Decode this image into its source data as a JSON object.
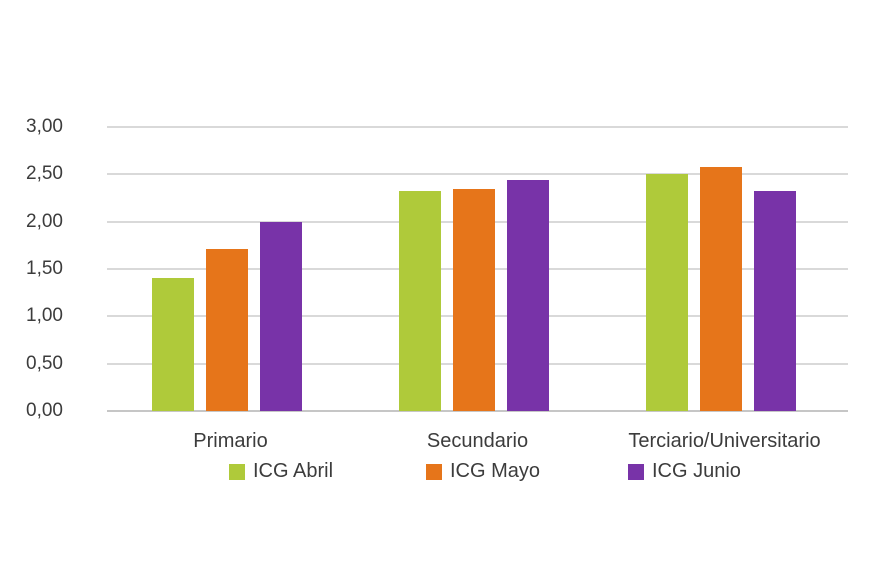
{
  "chart_data": {
    "type": "bar",
    "title": "",
    "xlabel": "",
    "ylabel": "",
    "categories": [
      "Primario",
      "Secundario",
      "Terciario/Universitario"
    ],
    "series": [
      {
        "name": "ICG Abril",
        "color": "#afca3a",
        "values": [
          1.4,
          2.32,
          2.5
        ]
      },
      {
        "name": "ICG Mayo",
        "color": "#e6751a",
        "values": [
          1.71,
          2.35,
          2.58
        ]
      },
      {
        "name": "ICG Junio",
        "color": "#7833a8",
        "values": [
          2.0,
          2.44,
          2.32
        ]
      }
    ],
    "ylim": [
      0,
      3
    ],
    "y_ticks": [
      {
        "value": 0.0,
        "label": "0,00"
      },
      {
        "value": 0.5,
        "label": "0,50"
      },
      {
        "value": 1.0,
        "label": "1,00"
      },
      {
        "value": 1.5,
        "label": "1,50"
      },
      {
        "value": 2.0,
        "label": "2,00"
      },
      {
        "value": 2.5,
        "label": "2,50"
      },
      {
        "value": 3.0,
        "label": "3,00"
      }
    ],
    "grid": "horizontal",
    "legend_position": "bottom",
    "colors": {
      "gridline": "#d9d9d9",
      "axis_text": "#3c3c3c",
      "background": "#ffffff"
    }
  }
}
